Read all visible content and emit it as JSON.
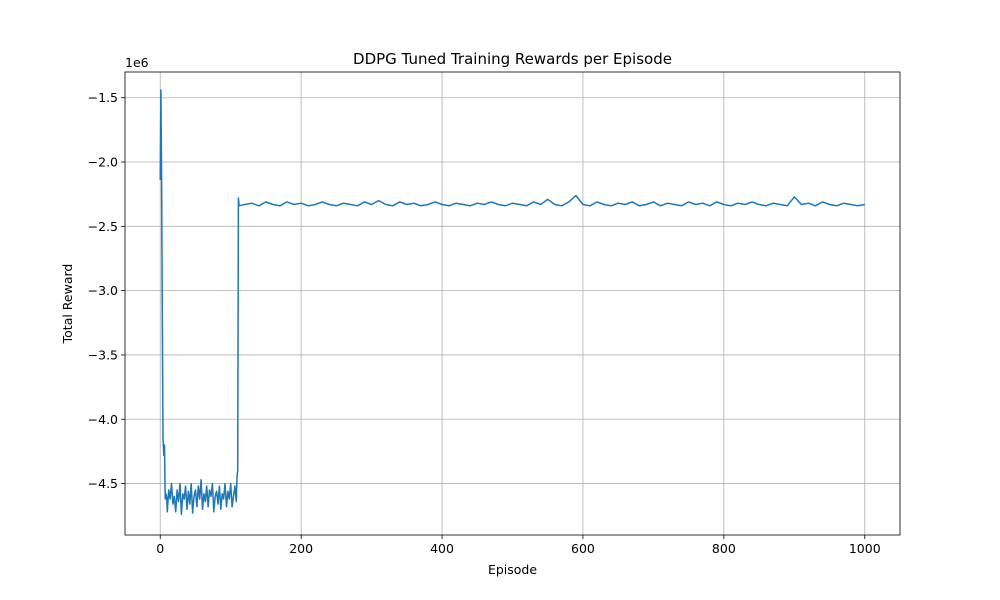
{
  "chart_data": {
    "type": "line",
    "title": "DDPG Tuned Training Rewards per Episode",
    "xlabel": "Episode",
    "ylabel": "Total Reward",
    "y_scale_label": "1e6",
    "xlim": [
      -50,
      1050
    ],
    "ylim": [
      -4.9,
      -1.3
    ],
    "x_ticks": [
      0,
      200,
      400,
      600,
      800,
      1000
    ],
    "x_tick_labels": [
      "0",
      "200",
      "400",
      "600",
      "800",
      "1000"
    ],
    "y_ticks": [
      -4.5,
      -4.0,
      -3.5,
      -3.0,
      -2.5,
      -2.0,
      -1.5
    ],
    "y_tick_labels": [
      "−4.5",
      "−4.0",
      "−3.5",
      "−3.0",
      "−2.5",
      "−2.0",
      "−1.5"
    ],
    "grid": true,
    "series": [
      {
        "color": "#1f77b4",
        "x": [
          0,
          1,
          2,
          3,
          4,
          5,
          6,
          7,
          8,
          9,
          10,
          12,
          14,
          16,
          18,
          20,
          22,
          24,
          26,
          28,
          30,
          32,
          34,
          36,
          38,
          40,
          42,
          44,
          46,
          48,
          50,
          52,
          54,
          56,
          58,
          60,
          62,
          64,
          66,
          68,
          70,
          72,
          74,
          76,
          78,
          80,
          82,
          84,
          86,
          88,
          90,
          92,
          94,
          96,
          98,
          100,
          102,
          104,
          106,
          108,
          109,
          110,
          111,
          112,
          120,
          130,
          140,
          150,
          160,
          170,
          180,
          190,
          200,
          210,
          220,
          230,
          240,
          250,
          260,
          270,
          280,
          290,
          300,
          310,
          320,
          330,
          340,
          350,
          360,
          370,
          380,
          390,
          400,
          410,
          420,
          430,
          440,
          450,
          460,
          470,
          480,
          490,
          500,
          510,
          520,
          530,
          540,
          550,
          560,
          570,
          580,
          590,
          600,
          610,
          620,
          630,
          640,
          650,
          660,
          670,
          680,
          690,
          700,
          710,
          720,
          730,
          740,
          750,
          760,
          770,
          780,
          790,
          800,
          810,
          820,
          830,
          840,
          850,
          860,
          870,
          880,
          890,
          900,
          910,
          920,
          930,
          940,
          950,
          960,
          970,
          980,
          990,
          1000
        ],
        "y": [
          -2.14,
          -1.44,
          -2.1,
          -3.2,
          -4.15,
          -4.28,
          -4.2,
          -4.62,
          -4.58,
          -4.6,
          -4.72,
          -4.55,
          -4.62,
          -4.5,
          -4.66,
          -4.6,
          -4.72,
          -4.55,
          -4.64,
          -4.5,
          -4.74,
          -4.58,
          -4.62,
          -4.52,
          -4.7,
          -4.56,
          -4.66,
          -4.5,
          -4.73,
          -4.6,
          -4.55,
          -4.68,
          -4.52,
          -4.62,
          -4.47,
          -4.7,
          -4.58,
          -4.64,
          -4.52,
          -4.68,
          -4.55,
          -4.6,
          -4.5,
          -4.72,
          -4.6,
          -4.56,
          -4.66,
          -4.52,
          -4.7,
          -4.58,
          -4.62,
          -4.5,
          -4.68,
          -4.56,
          -4.62,
          -4.5,
          -4.68,
          -4.6,
          -4.52,
          -4.64,
          -4.45,
          -4.4,
          -2.28,
          -2.34,
          -2.33,
          -2.32,
          -2.34,
          -2.31,
          -2.33,
          -2.34,
          -2.31,
          -2.33,
          -2.32,
          -2.34,
          -2.33,
          -2.31,
          -2.33,
          -2.34,
          -2.32,
          -2.33,
          -2.34,
          -2.31,
          -2.33,
          -2.3,
          -2.33,
          -2.34,
          -2.31,
          -2.33,
          -2.32,
          -2.34,
          -2.33,
          -2.31,
          -2.33,
          -2.34,
          -2.32,
          -2.33,
          -2.34,
          -2.32,
          -2.33,
          -2.31,
          -2.33,
          -2.34,
          -2.32,
          -2.33,
          -2.34,
          -2.31,
          -2.33,
          -2.29,
          -2.33,
          -2.34,
          -2.31,
          -2.26,
          -2.33,
          -2.34,
          -2.31,
          -2.33,
          -2.34,
          -2.32,
          -2.33,
          -2.31,
          -2.34,
          -2.33,
          -2.31,
          -2.34,
          -2.32,
          -2.33,
          -2.34,
          -2.31,
          -2.33,
          -2.32,
          -2.34,
          -2.31,
          -2.33,
          -2.34,
          -2.32,
          -2.33,
          -2.31,
          -2.33,
          -2.34,
          -2.32,
          -2.33,
          -2.34,
          -2.27,
          -2.33,
          -2.32,
          -2.34,
          -2.31,
          -2.33,
          -2.34,
          -2.32,
          -2.33,
          -2.34,
          -2.33
        ]
      }
    ]
  }
}
